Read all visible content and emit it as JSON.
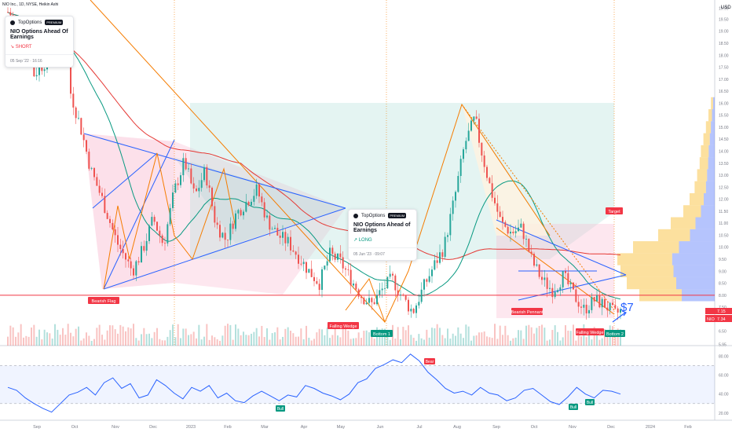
{
  "symbol_line": "NIO Inc., 1D, NYSE, Heikin Ashi",
  "currency": "USD",
  "brand": "TopOptions",
  "badge": "PREMIUM",
  "cards": [
    {
      "title": "NIO Options Ahead Of Earnings",
      "direction": "SHORT",
      "timestamp": "05 Sep '22 · 16:16",
      "color": "#f23645"
    },
    {
      "title": "NIO Options Ahead of Earnings",
      "direction": "LONG",
      "timestamp": "05 Jun '23 · 09:07",
      "color": "#089981"
    }
  ],
  "labels": {
    "bearish_flag": "Bearish Flag",
    "falling_wedge_1": "Falling Wedge",
    "falling_wedge_2": "Falling Wedge",
    "bottom_1": "Bottom 1",
    "bottom_2": "Bottom 2",
    "bearish_pennant": "Bearish Pennant",
    "bear": "Bear",
    "bull_1": "Bull",
    "bull_2": "Bull",
    "bull_3": "Bull",
    "target": "Target",
    "price_note": "$7",
    "ticker_tag": "NIO",
    "last_price": "7.34",
    "price_tag_2": "7.15"
  },
  "colors": {
    "up": "#26a69a",
    "down": "#ef5350",
    "rsi": "#2962ff",
    "ma_green": "#089981",
    "ma_red": "#e53935",
    "trend_orange": "#f57c00",
    "pattern_blue": "#2962ff",
    "zone_pink": "#f8bbd0",
    "zone_green": "#b2dfdb",
    "level_red": "#f23645"
  },
  "chart_data": {
    "type": "candlestick",
    "x_axis": {
      "ticks": [
        "Sep",
        "Oct",
        "Nov",
        "Dec",
        "2023",
        "Feb",
        "Mar",
        "Apr",
        "May",
        "Jun",
        "Jul",
        "Aug",
        "Sep",
        "Oct",
        "Nov",
        "Dec",
        "2024",
        "Feb"
      ]
    },
    "y_axis": {
      "ticks": [
        19.95,
        19.5,
        19.0,
        18.5,
        18.0,
        17.5,
        17.0,
        16.5,
        16.0,
        15.5,
        15.0,
        14.5,
        14.0,
        13.5,
        13.0,
        12.5,
        12.0,
        11.5,
        11.0,
        10.5,
        10.0,
        9.5,
        9.0,
        8.5,
        8.0,
        7.5,
        7.0,
        6.5,
        5.95
      ],
      "range": [
        5.9,
        20.3
      ],
      "log": false
    },
    "price_path": [
      {
        "t": 0,
        "price": 19.8
      },
      {
        "t": 3,
        "price": 19.2
      },
      {
        "t": 5,
        "price": 17.2
      },
      {
        "t": 8,
        "price": 17.9
      },
      {
        "t": 11,
        "price": 18.9
      },
      {
        "t": 12,
        "price": 16.5
      },
      {
        "t": 14,
        "price": 15.0
      },
      {
        "t": 16,
        "price": 13.2
      },
      {
        "t": 18,
        "price": 12.1
      },
      {
        "t": 21,
        "price": 10.2
      },
      {
        "t": 24,
        "price": 9.0
      },
      {
        "t": 26,
        "price": 9.9
      },
      {
        "t": 28,
        "price": 11.2
      },
      {
        "t": 30,
        "price": 10.1
      },
      {
        "t": 32,
        "price": 12.3
      },
      {
        "t": 34,
        "price": 13.6
      },
      {
        "t": 36,
        "price": 12.1
      },
      {
        "t": 38,
        "price": 13.2
      },
      {
        "t": 40,
        "price": 11.0
      },
      {
        "t": 42,
        "price": 10.3
      },
      {
        "t": 44,
        "price": 11.4
      },
      {
        "t": 46,
        "price": 11.9
      },
      {
        "t": 48,
        "price": 12.4
      },
      {
        "t": 50,
        "price": 11.1
      },
      {
        "t": 52,
        "price": 10.5
      },
      {
        "t": 54,
        "price": 10.2
      },
      {
        "t": 56,
        "price": 9.6
      },
      {
        "t": 58,
        "price": 9.0
      },
      {
        "t": 60,
        "price": 8.5
      },
      {
        "t": 62,
        "price": 9.7
      },
      {
        "t": 64,
        "price": 9.4
      },
      {
        "t": 66,
        "price": 8.7
      },
      {
        "t": 68,
        "price": 8.0
      },
      {
        "t": 70,
        "price": 7.6
      },
      {
        "t": 72,
        "price": 8.2
      },
      {
        "t": 74,
        "price": 8.7
      },
      {
        "t": 76,
        "price": 7.9
      },
      {
        "t": 78,
        "price": 7.3
      },
      {
        "t": 80,
        "price": 8.3
      },
      {
        "t": 82,
        "price": 9.2
      },
      {
        "t": 84,
        "price": 10.0
      },
      {
        "t": 86,
        "price": 12.0
      },
      {
        "t": 88,
        "price": 14.3
      },
      {
        "t": 90,
        "price": 15.4
      },
      {
        "t": 91,
        "price": 14.2
      },
      {
        "t": 93,
        "price": 12.4
      },
      {
        "t": 95,
        "price": 11.0
      },
      {
        "t": 97,
        "price": 10.6
      },
      {
        "t": 99,
        "price": 10.8
      },
      {
        "t": 101,
        "price": 9.4
      },
      {
        "t": 103,
        "price": 8.6
      },
      {
        "t": 105,
        "price": 8.2
      },
      {
        "t": 107,
        "price": 8.8
      },
      {
        "t": 109,
        "price": 8.0
      },
      {
        "t": 111,
        "price": 7.4
      },
      {
        "t": 113,
        "price": 7.8
      },
      {
        "t": 115,
        "price": 7.6
      },
      {
        "t": 117,
        "price": 7.2
      },
      {
        "t": 118,
        "price": 7.34
      }
    ],
    "horizontal_levels": [
      8.0
    ],
    "target_price": 11.3,
    "rsi": {
      "ticks": [
        80.0,
        60.0,
        40.0,
        20.0
      ],
      "range": [
        15,
        86
      ],
      "overbought": 70,
      "oversold": 30,
      "values": [
        47,
        44,
        36,
        30,
        25,
        21,
        30,
        39,
        42,
        47,
        39,
        52,
        57,
        46,
        51,
        36,
        39,
        55,
        49,
        41,
        35,
        47,
        43,
        49,
        36,
        41,
        33,
        31,
        38,
        43,
        38,
        33,
        39,
        37,
        49,
        46,
        41,
        38,
        34,
        40,
        52,
        56,
        67,
        71,
        76,
        73,
        82,
        75,
        63,
        55,
        46,
        41,
        43,
        39,
        47,
        41,
        39,
        33,
        36,
        44,
        46,
        39,
        32,
        29,
        37,
        47,
        40,
        36,
        44,
        43,
        40
      ]
    }
  }
}
